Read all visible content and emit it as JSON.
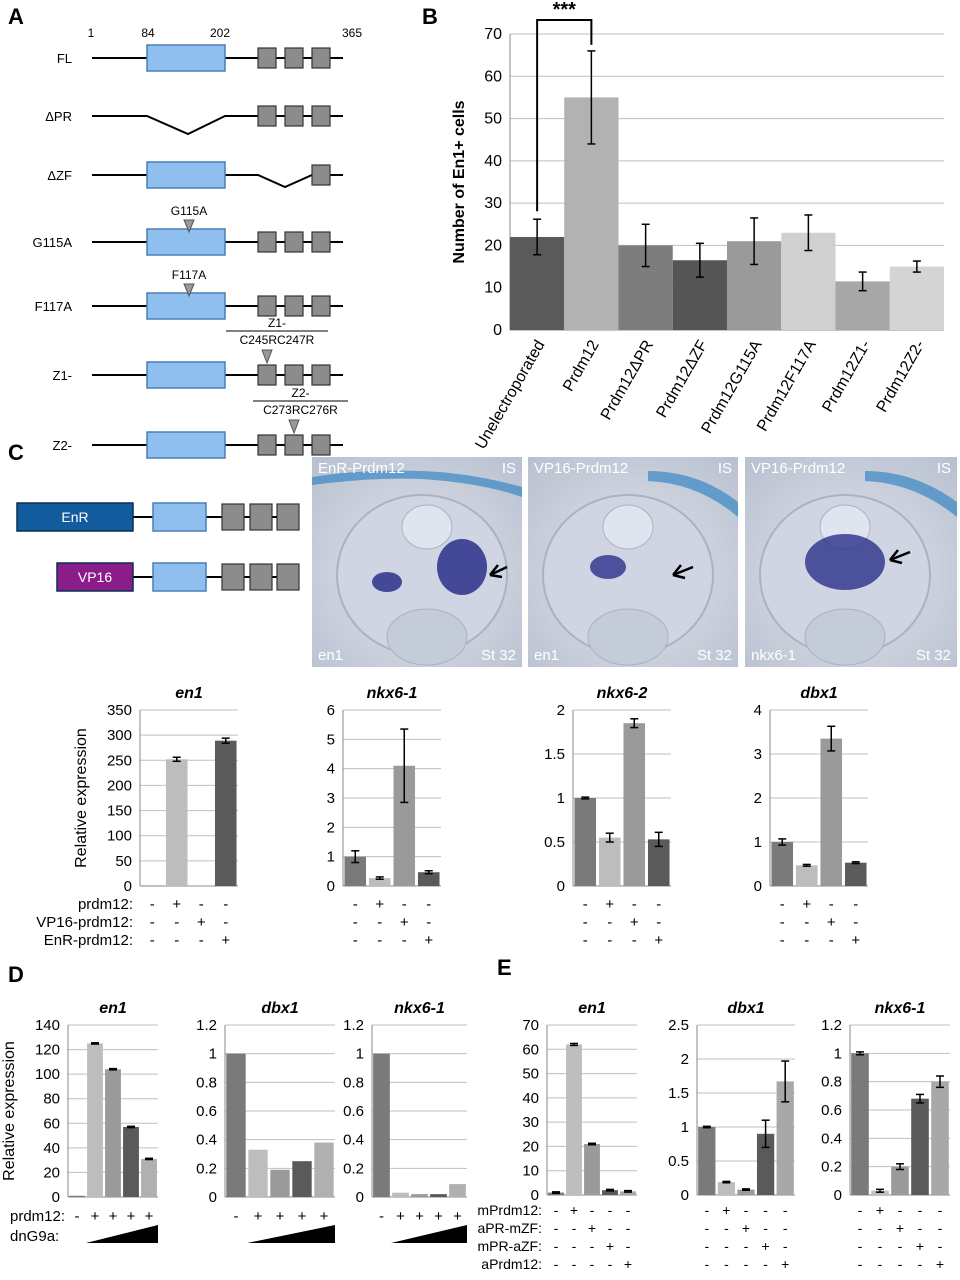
{
  "panels": {
    "A": {
      "label": "A",
      "positions": [
        "1",
        "84",
        "202",
        "365"
      ],
      "constructs": [
        {
          "name": "FL",
          "pr": "box"
        },
        {
          "name": "ΔPR",
          "pr": "deleted"
        },
        {
          "name": "ΔZF",
          "pr": "box",
          "zf": "deleted"
        },
        {
          "name": "G115A",
          "pr": "box",
          "mut": "G115A"
        },
        {
          "name": "F117A",
          "pr": "box",
          "mut": "F117A"
        },
        {
          "name": "Z1-",
          "pr": "box",
          "zfmut": "Z1-\nC245RC247R"
        },
        {
          "name": "Z2-",
          "pr": "box",
          "zfmut": "Z2-\nC273RC276R"
        }
      ]
    },
    "B": {
      "label": "B",
      "ylabel": "Number of En1+ cells",
      "significance": "***",
      "colors": [
        "#5a5a5a",
        "#b2b2b2",
        "#7d7d7d",
        "#555555",
        "#9a9a9a",
        "#d0d0d0",
        "#a7a7a7",
        "#d4d4d4"
      ]
    },
    "C": {
      "label": "C",
      "fusions": [
        {
          "tag": "EnR",
          "color": "#125b9c"
        },
        {
          "tag": "VP16",
          "color": "#8b1d8b"
        }
      ],
      "images": [
        {
          "title": "EnR-Prdm12",
          "corner": "IS",
          "marker": "en1",
          "stage": "St 32"
        },
        {
          "title": "VP16-Prdm12",
          "corner": "IS",
          "marker": "en1",
          "stage": "St 32"
        },
        {
          "title": "VP16-Prdm12",
          "corner": "IS",
          "marker": "nkx6-1",
          "stage": "St 32"
        }
      ],
      "ylabel": "Relative expression",
      "row_labels": [
        "prdm12:",
        "VP16-prdm12:",
        "EnR-prdm12:"
      ],
      "signs": [
        [
          "-",
          "+",
          "-",
          "-"
        ],
        [
          "-",
          "-",
          "+",
          "-"
        ],
        [
          "-",
          "-",
          "-",
          "+"
        ]
      ]
    },
    "D": {
      "label": "D",
      "ylabel": "Relative expression",
      "row_labels": [
        "prdm12:",
        "dnG9a:"
      ],
      "signs": [
        [
          "-",
          "+",
          "+",
          "+",
          "+"
        ]
      ]
    },
    "E": {
      "label": "E",
      "row_labels": [
        "mPrdm12:",
        "aPR-mZF:",
        "mPR-aZF:",
        "aPrdm12:"
      ],
      "signs": [
        [
          "-",
          "+",
          "-",
          "-",
          "-"
        ],
        [
          "-",
          "-",
          "+",
          "-",
          "-"
        ],
        [
          "-",
          "-",
          "-",
          "+",
          "-"
        ],
        [
          "-",
          "-",
          "-",
          "-",
          "+"
        ]
      ]
    }
  },
  "chart_data": [
    {
      "id": "B",
      "type": "bar",
      "categories": [
        "Unelectroporated",
        "Prdm12",
        "Prdm12ΔPR",
        "Prdm12ΔZF",
        "Prdm12G115A",
        "Prdm12F117A",
        "Prdm12Z1-",
        "Prdm12Z2-"
      ],
      "values": [
        22,
        55,
        20,
        16.5,
        21,
        23,
        11.5,
        15
      ],
      "errors": [
        4.2,
        11,
        5,
        4,
        5.5,
        4.2,
        2.2,
        1.3
      ],
      "ylim": [
        0,
        70
      ],
      "yticks": [
        0,
        10,
        20,
        30,
        40,
        50,
        60,
        70
      ],
      "ylabel": "Number of En1+ cells",
      "grid": true
    },
    {
      "id": "C-en1",
      "type": "bar",
      "title": "en1",
      "values": [
        0.5,
        252,
        1,
        289
      ],
      "errors": [
        0,
        4,
        0,
        5
      ],
      "ylim": [
        0,
        350
      ],
      "yticks": [
        0,
        50,
        100,
        150,
        200,
        250,
        300,
        350
      ],
      "tick_labels": [
        "0",
        "50",
        "100",
        "150",
        "200",
        "250",
        "300",
        "350"
      ],
      "colors": [
        "#7a7a7a",
        "#bdbdbd",
        "#9a9a9a",
        "#5a5a5a"
      ]
    },
    {
      "id": "C-nkx6-1",
      "type": "bar",
      "title": "nkx6-1",
      "values": [
        1.0,
        0.27,
        4.1,
        0.47
      ],
      "errors": [
        0.2,
        0.04,
        1.25,
        0.05
      ],
      "ylim": [
        0,
        6
      ],
      "yticks": [
        0,
        1,
        2,
        3,
        4,
        5,
        6
      ],
      "tick_labels": [
        "0",
        "1",
        "2",
        "3",
        "4",
        "5",
        "6"
      ],
      "colors": [
        "#7a7a7a",
        "#bdbdbd",
        "#9a9a9a",
        "#5a5a5a"
      ]
    },
    {
      "id": "C-nkx6-2",
      "type": "bar",
      "title": "nkx6-2",
      "values": [
        1.0,
        0.55,
        1.85,
        0.53
      ],
      "errors": [
        0.01,
        0.05,
        0.05,
        0.08
      ],
      "ylim": [
        0,
        2
      ],
      "yticks": [
        0,
        0.5,
        1,
        1.5,
        2
      ],
      "tick_labels": [
        "0",
        "0.5",
        "1",
        "1.5",
        "2"
      ],
      "colors": [
        "#7a7a7a",
        "#bdbdbd",
        "#9a9a9a",
        "#5a5a5a"
      ]
    },
    {
      "id": "C-dbx1",
      "type": "bar",
      "title": "dbx1",
      "values": [
        1.0,
        0.47,
        3.35,
        0.53
      ],
      "errors": [
        0.07,
        0.02,
        0.28,
        0.02
      ],
      "ylim": [
        0,
        4
      ],
      "yticks": [
        0,
        1,
        2,
        3,
        4
      ],
      "tick_labels": [
        "0",
        "1",
        "2",
        "3",
        "4"
      ],
      "colors": [
        "#7a7a7a",
        "#bdbdbd",
        "#9a9a9a",
        "#5a5a5a"
      ]
    },
    {
      "id": "D-en1",
      "type": "bar",
      "title": "en1",
      "values": [
        1,
        125,
        104,
        57,
        31
      ],
      "errors": [
        0,
        0.5,
        0.5,
        0.5,
        0.5
      ],
      "ylim": [
        0,
        140
      ],
      "yticks": [
        0,
        20,
        40,
        60,
        80,
        100,
        120,
        140
      ],
      "tick_labels": [
        "0",
        "20",
        "40",
        "60",
        "80",
        "100",
        "120",
        "140"
      ],
      "colors": [
        "#7a7a7a",
        "#bdbdbd",
        "#9a9a9a",
        "#5a5a5a",
        "#b0b0b0"
      ]
    },
    {
      "id": "D-dbx1",
      "type": "bar",
      "title": "dbx1",
      "values": [
        1.0,
        0.33,
        0.19,
        0.25,
        0.38
      ],
      "errors": [
        0,
        0,
        0,
        0,
        0
      ],
      "ylim": [
        0,
        1.2
      ],
      "yticks": [
        0,
        0.2,
        0.4,
        0.6,
        0.8,
        1,
        1.2
      ],
      "tick_labels": [
        "0",
        "0.2",
        "0.4",
        "0.6",
        "0.8",
        "1",
        "1.2"
      ],
      "colors": [
        "#7a7a7a",
        "#bdbdbd",
        "#9a9a9a",
        "#5a5a5a",
        "#b0b0b0"
      ]
    },
    {
      "id": "D-nkx6-1",
      "type": "bar",
      "title": "nkx6-1",
      "values": [
        1.0,
        0.03,
        0.02,
        0.02,
        0.09
      ],
      "errors": [
        0,
        0,
        0,
        0,
        0
      ],
      "ylim": [
        0,
        1.2
      ],
      "yticks": [
        0,
        0.2,
        0.4,
        0.6,
        0.8,
        1,
        1.2
      ],
      "tick_labels": [
        "0",
        "0.2",
        "0.4",
        "0.6",
        "0.8",
        "1",
        "1.2"
      ],
      "colors": [
        "#7a7a7a",
        "#bdbdbd",
        "#9a9a9a",
        "#5a5a5a",
        "#b0b0b0"
      ]
    },
    {
      "id": "E-en1",
      "type": "bar",
      "title": "en1",
      "values": [
        1,
        62,
        21,
        2,
        1.5
      ],
      "errors": [
        0.3,
        0.4,
        0.3,
        0.3,
        0.3
      ],
      "ylim": [
        0,
        70
      ],
      "yticks": [
        0,
        10,
        20,
        30,
        40,
        50,
        60,
        70
      ],
      "tick_labels": [
        "0",
        "10",
        "20",
        "30",
        "40",
        "50",
        "60",
        "70"
      ],
      "colors": [
        "#7a7a7a",
        "#bdbdbd",
        "#9a9a9a",
        "#5a5a5a",
        "#a8a8a8"
      ]
    },
    {
      "id": "E-dbx1",
      "type": "bar",
      "title": "dbx1",
      "values": [
        1.0,
        0.19,
        0.08,
        0.9,
        1.67
      ],
      "errors": [
        0.01,
        0.01,
        0.01,
        0.2,
        0.3
      ],
      "ylim": [
        0,
        2.5
      ],
      "yticks": [
        0,
        0.5,
        1,
        1.5,
        2,
        2.5
      ],
      "tick_labels": [
        "0",
        "0.5",
        "1",
        "1.5",
        "2",
        "2.5"
      ],
      "colors": [
        "#7a7a7a",
        "#bdbdbd",
        "#9a9a9a",
        "#5a5a5a",
        "#a8a8a8"
      ]
    },
    {
      "id": "E-nkx6-1",
      "type": "bar",
      "title": "nkx6-1",
      "values": [
        1.0,
        0.03,
        0.2,
        0.68,
        0.8
      ],
      "errors": [
        0.01,
        0.01,
        0.02,
        0.03,
        0.04
      ],
      "ylim": [
        0,
        1.2
      ],
      "yticks": [
        0,
        0.2,
        0.4,
        0.6,
        0.8,
        1,
        1.2
      ],
      "tick_labels": [
        "0",
        "0.2",
        "0.4",
        "0.6",
        "0.8",
        "1",
        "1.2"
      ],
      "colors": [
        "#7a7a7a",
        "#bdbdbd",
        "#9a9a9a",
        "#5a5a5a",
        "#a8a8a8"
      ]
    }
  ]
}
